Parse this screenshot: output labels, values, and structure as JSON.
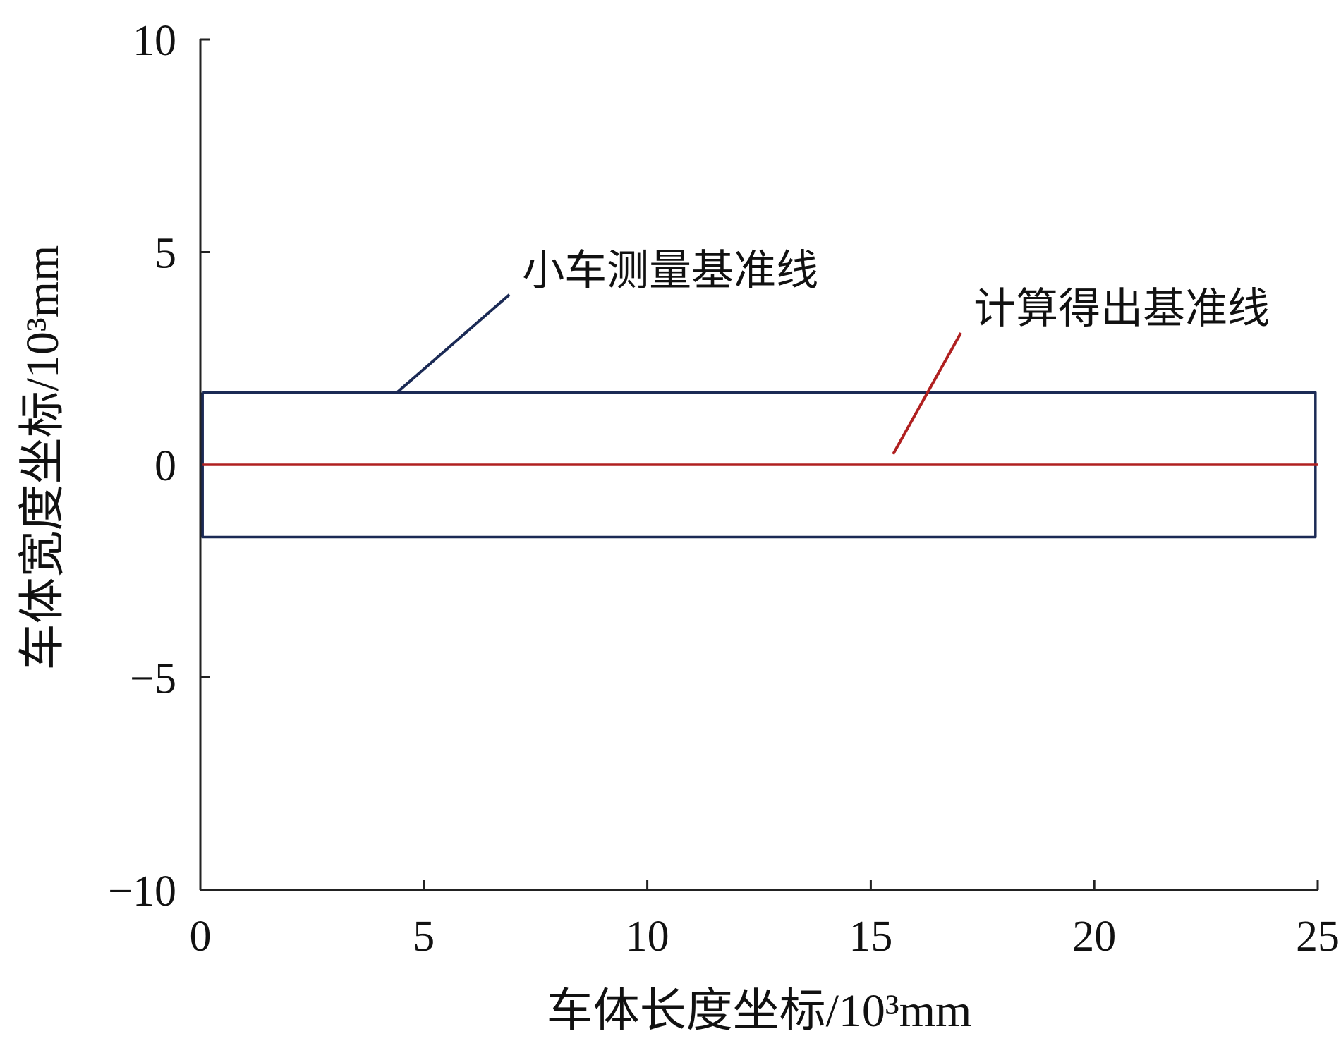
{
  "chart_data": {
    "type": "line",
    "title": "",
    "xlabel": "车体长度坐标/10³mm",
    "ylabel": "车体宽度坐标/10³mm",
    "xlim": [
      0,
      25
    ],
    "ylim": [
      -10,
      10
    ],
    "xticks": [
      0,
      5,
      10,
      15,
      20,
      25
    ],
    "yticks": [
      -10,
      -5,
      0,
      5,
      10
    ],
    "xtick_labels": [
      "0",
      "5",
      "10",
      "15",
      "20",
      "25"
    ],
    "ytick_labels": [
      "−10",
      "−5",
      "0",
      "5",
      "10"
    ],
    "grid": false,
    "series": [
      {
        "name": "小车测量基准线",
        "color": "#1b2a55",
        "x": [
          0.05,
          24.95,
          24.95,
          0.05,
          0.05
        ],
        "y": [
          1.7,
          1.7,
          -1.7,
          -1.7,
          1.7
        ]
      },
      {
        "name": "计算得出基准线",
        "color": "#b02020",
        "x": [
          0.05,
          25
        ],
        "y": [
          0,
          0
        ]
      }
    ],
    "annotations": [
      {
        "text": "小车测量基准线",
        "color": "#1b2a55",
        "target": [
          4.4,
          1.7
        ],
        "text_at": [
          7.2,
          4.1
        ],
        "anchor": "start"
      },
      {
        "text": "计算得出基准线",
        "color": "#b02020",
        "target": [
          15.5,
          0.25
        ],
        "text_at": [
          17.3,
          3.2
        ],
        "anchor": "start"
      }
    ]
  }
}
